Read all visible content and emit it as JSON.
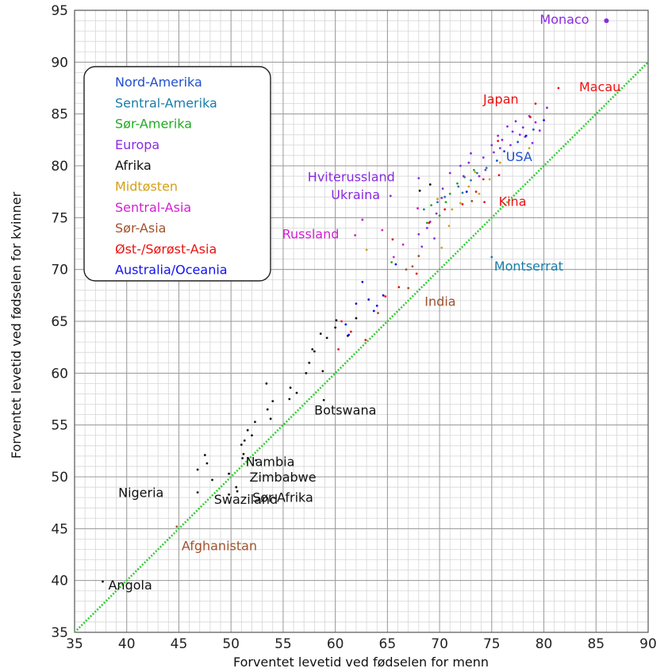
{
  "chart_data": {
    "type": "scatter",
    "xlabel": "Forventet levetid ved fødselen for menn",
    "ylabel": "Forventet levetid ved fødselen for kvinner",
    "xlim": [
      35,
      90
    ],
    "ylim": [
      35,
      95
    ],
    "x_ticks": [
      35,
      40,
      45,
      50,
      55,
      60,
      65,
      70,
      75,
      80,
      85,
      90
    ],
    "y_ticks": [
      35,
      40,
      45,
      50,
      55,
      60,
      65,
      70,
      75,
      80,
      85,
      90,
      95
    ],
    "grid": true,
    "minor_grid": true,
    "legend_position": "top-left",
    "reference_line": {
      "from": [
        35,
        35
      ],
      "to": [
        90,
        90
      ],
      "color": "#33cc33",
      "style": "dotted"
    },
    "series": [
      {
        "name": "Nord-Amerika",
        "color": "#1f4fd1",
        "points": [
          [
            75.5,
            80.5
          ],
          [
            77.5,
            82.3
          ],
          [
            79.0,
            83.5
          ],
          [
            76.2,
            81.4
          ]
        ]
      },
      {
        "name": "Sentral-Amerika",
        "color": "#1a7da8",
        "points": [
          [
            75.0,
            71.2
          ],
          [
            70.5,
            77.0
          ],
          [
            71.8,
            78.0
          ],
          [
            73.0,
            78.6
          ],
          [
            72.2,
            77.4
          ],
          [
            69.8,
            76.5
          ],
          [
            73.6,
            79.3
          ],
          [
            74.5,
            79.8
          ],
          [
            68.5,
            75.8
          ]
        ]
      },
      {
        "name": "Sør-Amerika",
        "color": "#22aa22",
        "points": [
          [
            69.2,
            76.2
          ],
          [
            70.6,
            76.5
          ],
          [
            71.0,
            77.3
          ],
          [
            72.4,
            78.9
          ],
          [
            73.3,
            79.6
          ],
          [
            70.0,
            75.2
          ],
          [
            71.7,
            78.3
          ],
          [
            65.4,
            70.7
          ],
          [
            68.8,
            74.5
          ]
        ]
      },
      {
        "name": "Europa",
        "color": "#8a2be2",
        "points": [
          [
            86.0,
            94.0
          ],
          [
            68.0,
            78.8
          ],
          [
            65.3,
            77.1
          ],
          [
            72.0,
            80.0
          ],
          [
            73.0,
            81.2
          ],
          [
            74.2,
            80.8
          ],
          [
            75.0,
            82.0
          ],
          [
            76.0,
            82.5
          ],
          [
            77.0,
            83.3
          ],
          [
            78.0,
            83.7
          ],
          [
            79.2,
            84.2
          ],
          [
            78.6,
            84.8
          ],
          [
            77.3,
            84.3
          ],
          [
            76.5,
            83.8
          ],
          [
            75.6,
            82.9
          ],
          [
            76.8,
            82.0
          ],
          [
            78.2,
            82.8
          ],
          [
            79.6,
            83.4
          ],
          [
            80.3,
            85.6
          ],
          [
            74.4,
            79.6
          ],
          [
            72.3,
            79.0
          ],
          [
            70.3,
            77.8
          ],
          [
            69.7,
            75.4
          ],
          [
            69.1,
            74.6
          ],
          [
            68.8,
            74.0
          ],
          [
            69.5,
            73.0
          ],
          [
            68.3,
            72.2
          ],
          [
            71.0,
            79.3
          ],
          [
            70.2,
            76.9
          ],
          [
            72.8,
            80.3
          ],
          [
            75.2,
            81.3
          ],
          [
            77.7,
            83.0
          ],
          [
            78.9,
            82.2
          ],
          [
            75.8,
            81.7
          ],
          [
            73.8,
            79.0
          ],
          [
            68.0,
            73.4
          ]
        ]
      },
      {
        "name": "Afrika",
        "color": "#111111",
        "points": [
          [
            37.7,
            39.9
          ],
          [
            46.8,
            48.5
          ],
          [
            48.2,
            49.7
          ],
          [
            49.8,
            48.3
          ],
          [
            47.7,
            51.3
          ],
          [
            51.1,
            51.8
          ],
          [
            51.2,
            52.2
          ],
          [
            46.8,
            50.7
          ],
          [
            47.5,
            52.1
          ],
          [
            50.5,
            49.0
          ],
          [
            50.6,
            48.6
          ],
          [
            51.3,
            53.5
          ],
          [
            51.6,
            54.5
          ],
          [
            52.0,
            54.0
          ],
          [
            52.3,
            55.3
          ],
          [
            51.0,
            53.1
          ],
          [
            53.5,
            56.5
          ],
          [
            53.8,
            55.6
          ],
          [
            54.0,
            57.3
          ],
          [
            55.6,
            57.5
          ],
          [
            55.7,
            58.6
          ],
          [
            57.2,
            60.0
          ],
          [
            57.5,
            61.0
          ],
          [
            58.0,
            62.1
          ],
          [
            59.2,
            63.4
          ],
          [
            58.6,
            63.8
          ],
          [
            60.1,
            65.1
          ],
          [
            58.8,
            60.2
          ],
          [
            58.9,
            57.4
          ],
          [
            52.4,
            51.6
          ],
          [
            53.4,
            59.0
          ],
          [
            56.3,
            58.1
          ],
          [
            57.8,
            62.3
          ],
          [
            60.0,
            64.4
          ],
          [
            61.2,
            63.6
          ],
          [
            62.0,
            65.3
          ],
          [
            49.8,
            50.3
          ],
          [
            68.1,
            77.6
          ],
          [
            69.1,
            78.2
          ]
        ]
      },
      {
        "name": "Midtøsten",
        "color": "#d4a017",
        "points": [
          [
            69.8,
            76.8
          ],
          [
            71.2,
            75.8
          ],
          [
            72.8,
            78.0
          ],
          [
            73.8,
            77.3
          ],
          [
            74.8,
            78.7
          ],
          [
            70.2,
            72.1
          ],
          [
            75.8,
            80.3
          ],
          [
            63.0,
            71.9
          ],
          [
            73.4,
            79.4
          ],
          [
            72.0,
            76.4
          ],
          [
            70.9,
            74.2
          ],
          [
            78.6,
            81.7
          ]
        ]
      },
      {
        "name": "Sentral-Asia",
        "color": "#d11fd1",
        "points": [
          [
            61.9,
            73.3
          ],
          [
            64.5,
            73.8
          ],
          [
            62.6,
            74.8
          ],
          [
            67.9,
            75.9
          ],
          [
            65.6,
            71.2
          ],
          [
            66.5,
            72.4
          ]
        ]
      },
      {
        "name": "Sør-Asia",
        "color": "#a0522d",
        "points": [
          [
            44.8,
            45.2
          ],
          [
            64.1,
            65.8
          ],
          [
            67.0,
            68.2
          ],
          [
            67.4,
            70.3
          ],
          [
            66.8,
            70.0
          ],
          [
            68.0,
            71.3
          ],
          [
            73.1,
            76.6
          ]
        ]
      },
      {
        "name": "Øst-/Sørøst-Asia",
        "color": "#ee1111",
        "points": [
          [
            81.4,
            87.5
          ],
          [
            79.2,
            86.0
          ],
          [
            74.3,
            76.5
          ],
          [
            62.9,
            63.2
          ],
          [
            64.8,
            67.4
          ],
          [
            65.5,
            72.9
          ],
          [
            67.8,
            69.6
          ],
          [
            66.1,
            68.3
          ],
          [
            69.0,
            74.5
          ],
          [
            70.5,
            75.8
          ],
          [
            72.2,
            76.3
          ],
          [
            73.5,
            77.5
          ],
          [
            60.6,
            65.0
          ],
          [
            60.3,
            62.3
          ],
          [
            75.7,
            79.1
          ],
          [
            78.7,
            84.7
          ],
          [
            74.2,
            78.7
          ],
          [
            75.6,
            82.4
          ],
          [
            61.5,
            64.0
          ]
        ]
      },
      {
        "name": "Australia/Oceania",
        "color": "#1111ee",
        "points": [
          [
            80.0,
            84.4
          ],
          [
            78.3,
            82.9
          ],
          [
            62.6,
            68.8
          ],
          [
            64.0,
            66.5
          ],
          [
            64.6,
            67.5
          ],
          [
            62.0,
            66.7
          ],
          [
            63.2,
            67.1
          ],
          [
            65.8,
            70.5
          ],
          [
            72.6,
            77.5
          ],
          [
            61.0,
            64.7
          ],
          [
            61.3,
            63.7
          ],
          [
            63.7,
            66.0
          ]
        ]
      }
    ],
    "annotations": [
      {
        "text": "Monaco",
        "x": 86.0,
        "y": 94.0,
        "color": "#8a2be2"
      },
      {
        "text": "Macau",
        "x": 81.4,
        "y": 87.5,
        "color": "#ee1111"
      },
      {
        "text": "Japan",
        "x": 79.2,
        "y": 86.0,
        "color": "#ee1111"
      },
      {
        "text": "USA",
        "x": 75.6,
        "y": 80.6,
        "color": "#1f4fd1"
      },
      {
        "text": "Hviterussland",
        "x": 68.0,
        "y": 78.8,
        "color": "#8a2be2"
      },
      {
        "text": "Ukraina",
        "x": 65.3,
        "y": 77.1,
        "color": "#8a2be2"
      },
      {
        "text": "Kina",
        "x": 74.3,
        "y": 76.5,
        "color": "#ee1111"
      },
      {
        "text": "Russland",
        "x": 61.9,
        "y": 73.3,
        "color": "#d11fd1"
      },
      {
        "text": "Montserrat",
        "x": 75.0,
        "y": 71.2,
        "color": "#1a7da8"
      },
      {
        "text": "India",
        "x": 74.2,
        "y": 67.2,
        "color": "#a0522d"
      },
      {
        "text": "Botswana",
        "x": 58.9,
        "y": 57.4,
        "color": "#111111"
      },
      {
        "text": "Nambia",
        "x": 51.1,
        "y": 51.8,
        "color": "#111111"
      },
      {
        "text": "Zimbabwe",
        "x": 49.8,
        "y": 50.3,
        "color": "#111111"
      },
      {
        "text": "Nigeria",
        "x": 46.8,
        "y": 48.5,
        "color": "#111111"
      },
      {
        "text": "Sør-Afrika",
        "x": 50.6,
        "y": 48.6,
        "color": "#111111"
      },
      {
        "text": "Swaziland",
        "x": 50.5,
        "y": 49.0,
        "color": "#111111"
      },
      {
        "text": "Afghanistan",
        "x": 44.8,
        "y": 45.2,
        "color": "#a0522d"
      },
      {
        "text": "Angola",
        "x": 37.7,
        "y": 39.9,
        "color": "#111111"
      }
    ]
  }
}
